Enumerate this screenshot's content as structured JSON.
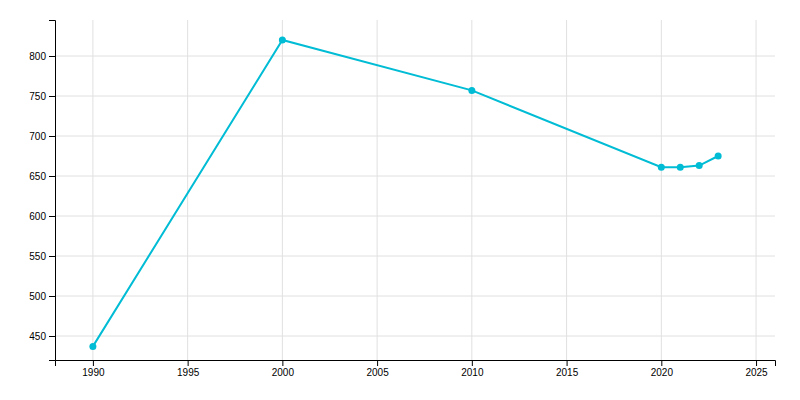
{
  "chart_data": {
    "type": "line",
    "x": [
      1990,
      2000,
      2010,
      2020,
      2021,
      2022,
      2023
    ],
    "values": [
      437,
      820,
      757,
      661,
      661,
      663,
      675
    ],
    "color": "#00BCD4",
    "marker": "circle",
    "xlim": [
      1988,
      2026
    ],
    "ylim": [
      420,
      845
    ],
    "xticks": [
      1990,
      1995,
      2000,
      2005,
      2010,
      2015,
      2020,
      2025
    ],
    "yticks": [
      450,
      500,
      550,
      600,
      650,
      700,
      750,
      800
    ],
    "grid": true
  }
}
